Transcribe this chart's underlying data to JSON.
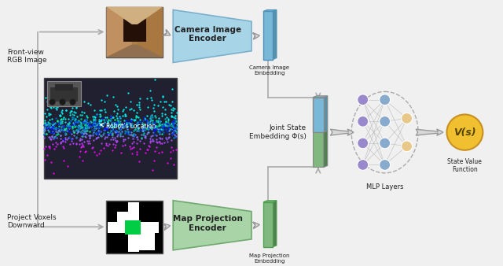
{
  "bg_color": "#f0f0f0",
  "fig_width": 6.4,
  "fig_height": 3.38,
  "dpi": 100,
  "labels": {
    "front_view": "Front-view\nRGB Image",
    "project_voxels": "Project Voxels\nDownward",
    "camera_encoder": "Camera Image\nEncoder",
    "map_encoder": "Map Projection\nEncoder",
    "camera_embedding": "Camera Image\nEmbedding",
    "map_embedding": "Map Projection\nEmbedding",
    "joint_state": "Joint State\nEmbedding Φ(s)",
    "mlp": "MLP Layers",
    "state_value": "State Value\nFunction",
    "robots_location": "Robot's Location",
    "vs": "V(s)"
  },
  "colors": {
    "cam_enc_fill": "#a8d4e8",
    "cam_enc_edge": "#7ab0cc",
    "map_enc_fill": "#a8d4a8",
    "map_enc_edge": "#70a870",
    "cam_emb_fill": "#7ab8d8",
    "cam_emb_edge": "#4a90b8",
    "cam_emb_side": "#5890a8",
    "map_emb_fill": "#80b880",
    "map_emb_edge": "#50a050",
    "map_emb_side": "#508050",
    "joint_top": "#7ab8d8",
    "joint_bot": "#80b880",
    "joint_edge": "#888888",
    "mlp_purple": "#9988cc",
    "mlp_blue": "#88aacc",
    "mlp_orange": "#e8c888",
    "arrow_fc": "#d8d8d8",
    "arrow_ec": "#999999",
    "line_color": "#aaaaaa",
    "vs_fill": "#f0c030",
    "vs_edge": "#c89020",
    "text_dark": "#222222",
    "lidar_bg": "#202030",
    "lidar_bg2": "#252535"
  }
}
